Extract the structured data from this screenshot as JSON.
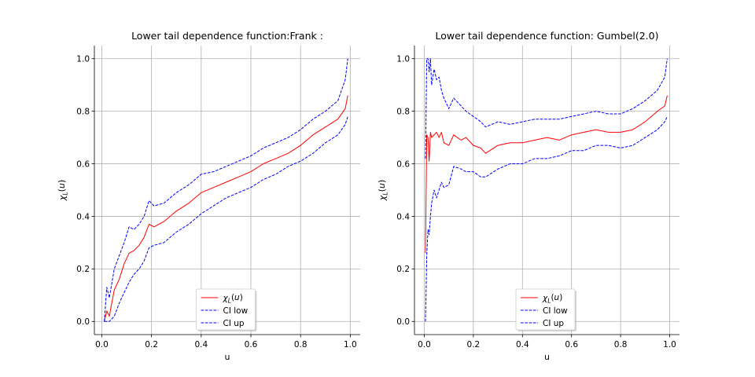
{
  "chart_data": [
    {
      "type": "line",
      "title": "Lower tail dependence function:Frank :",
      "xlabel": "u",
      "ylabel": "χL(u)",
      "xlim": [
        -0.03,
        1.04
      ],
      "ylim": [
        -0.05,
        1.05
      ],
      "xticks": [
        "0.0",
        "0.2",
        "0.4",
        "0.6",
        "0.8",
        "1.0"
      ],
      "yticks": [
        "0.0",
        "0.2",
        "0.4",
        "0.6",
        "0.8",
        "1.0"
      ],
      "grid": true,
      "legend": {
        "placement": "lower center",
        "entries": [
          "χL(u)",
          "CI low",
          "CI up"
        ]
      },
      "series": [
        {
          "name": "χL(u)",
          "color": "#ff0000",
          "dash": "solid",
          "x": [
            0.01,
            0.02,
            0.03,
            0.05,
            0.07,
            0.09,
            0.11,
            0.13,
            0.15,
            0.17,
            0.19,
            0.21,
            0.25,
            0.3,
            0.35,
            0.4,
            0.45,
            0.5,
            0.55,
            0.6,
            0.65,
            0.7,
            0.75,
            0.8,
            0.85,
            0.9,
            0.95,
            0.98,
            0.99
          ],
          "y": [
            0.0,
            0.04,
            0.02,
            0.12,
            0.16,
            0.22,
            0.26,
            0.27,
            0.29,
            0.32,
            0.37,
            0.36,
            0.38,
            0.42,
            0.45,
            0.49,
            0.51,
            0.53,
            0.55,
            0.57,
            0.6,
            0.62,
            0.64,
            0.67,
            0.71,
            0.74,
            0.77,
            0.81,
            0.86
          ]
        },
        {
          "name": "CI low",
          "color": "#0000ff",
          "dash": "dashed",
          "x": [
            0.01,
            0.03,
            0.05,
            0.07,
            0.09,
            0.11,
            0.13,
            0.15,
            0.17,
            0.19,
            0.21,
            0.25,
            0.3,
            0.35,
            0.4,
            0.45,
            0.5,
            0.55,
            0.6,
            0.65,
            0.7,
            0.75,
            0.8,
            0.85,
            0.9,
            0.95,
            0.98,
            0.99
          ],
          "y": [
            0.0,
            0.0,
            0.02,
            0.07,
            0.11,
            0.15,
            0.18,
            0.2,
            0.23,
            0.28,
            0.29,
            0.3,
            0.34,
            0.37,
            0.41,
            0.44,
            0.47,
            0.49,
            0.51,
            0.54,
            0.56,
            0.59,
            0.61,
            0.64,
            0.68,
            0.71,
            0.75,
            0.78
          ]
        },
        {
          "name": "CI up",
          "color": "#0000ff",
          "dash": "dashed",
          "x": [
            0.01,
            0.02,
            0.03,
            0.05,
            0.07,
            0.09,
            0.11,
            0.13,
            0.15,
            0.17,
            0.19,
            0.21,
            0.25,
            0.3,
            0.35,
            0.4,
            0.45,
            0.5,
            0.55,
            0.6,
            0.65,
            0.7,
            0.75,
            0.8,
            0.85,
            0.9,
            0.95,
            0.98,
            0.99
          ],
          "y": [
            0.0,
            0.13,
            0.09,
            0.2,
            0.25,
            0.3,
            0.36,
            0.35,
            0.37,
            0.4,
            0.46,
            0.44,
            0.45,
            0.49,
            0.52,
            0.56,
            0.57,
            0.59,
            0.61,
            0.63,
            0.66,
            0.68,
            0.7,
            0.73,
            0.77,
            0.8,
            0.84,
            0.92,
            1.0
          ]
        }
      ]
    },
    {
      "type": "line",
      "title": "Lower tail dependence function: Gumbel(2.0)",
      "xlabel": "u",
      "ylabel": "χL(u)",
      "xlim": [
        -0.04,
        1.04
      ],
      "ylim": [
        -0.05,
        1.05
      ],
      "xticks": [
        "0.0",
        "0.2",
        "0.4",
        "0.6",
        "0.8",
        "1.0"
      ],
      "yticks": [
        "0.0",
        "0.2",
        "0.4",
        "0.6",
        "0.8",
        "1.0"
      ],
      "grid": true,
      "legend": {
        "placement": "lower center",
        "entries": [
          "χL(u)",
          "CI low",
          "CI up"
        ]
      },
      "series": [
        {
          "name": "χL(u)",
          "color": "#ff0000",
          "dash": "solid",
          "x": [
            0.005,
            0.01,
            0.015,
            0.02,
            0.025,
            0.03,
            0.04,
            0.05,
            0.06,
            0.07,
            0.08,
            0.1,
            0.12,
            0.15,
            0.17,
            0.2,
            0.23,
            0.25,
            0.3,
            0.35,
            0.4,
            0.45,
            0.5,
            0.55,
            0.6,
            0.65,
            0.7,
            0.75,
            0.8,
            0.85,
            0.9,
            0.95,
            0.98,
            0.99
          ],
          "y": [
            0.26,
            0.71,
            0.7,
            0.61,
            0.72,
            0.7,
            0.71,
            0.72,
            0.7,
            0.72,
            0.68,
            0.67,
            0.71,
            0.69,
            0.7,
            0.67,
            0.66,
            0.64,
            0.67,
            0.68,
            0.68,
            0.69,
            0.7,
            0.69,
            0.71,
            0.72,
            0.73,
            0.72,
            0.72,
            0.73,
            0.76,
            0.8,
            0.82,
            0.86
          ]
        },
        {
          "name": "CI low",
          "color": "#0000ff",
          "dash": "dashed",
          "x": [
            0.005,
            0.01,
            0.015,
            0.02,
            0.025,
            0.03,
            0.04,
            0.05,
            0.06,
            0.07,
            0.08,
            0.1,
            0.12,
            0.15,
            0.17,
            0.2,
            0.23,
            0.25,
            0.3,
            0.35,
            0.4,
            0.45,
            0.5,
            0.55,
            0.6,
            0.65,
            0.7,
            0.75,
            0.8,
            0.85,
            0.9,
            0.95,
            0.98,
            0.99
          ],
          "y": [
            0.0,
            0.25,
            0.35,
            0.33,
            0.4,
            0.45,
            0.5,
            0.47,
            0.5,
            0.53,
            0.51,
            0.52,
            0.59,
            0.58,
            0.57,
            0.57,
            0.55,
            0.55,
            0.58,
            0.6,
            0.6,
            0.62,
            0.62,
            0.63,
            0.65,
            0.65,
            0.67,
            0.67,
            0.66,
            0.67,
            0.7,
            0.73,
            0.76,
            0.78
          ]
        },
        {
          "name": "CI up",
          "color": "#0000ff",
          "dash": "dashed",
          "x": [
            0.005,
            0.01,
            0.015,
            0.02,
            0.025,
            0.03,
            0.04,
            0.05,
            0.06,
            0.07,
            0.08,
            0.1,
            0.12,
            0.15,
            0.17,
            0.2,
            0.23,
            0.25,
            0.3,
            0.35,
            0.4,
            0.45,
            0.5,
            0.55,
            0.6,
            0.65,
            0.7,
            0.75,
            0.8,
            0.85,
            0.9,
            0.95,
            0.98,
            0.99
          ],
          "y": [
            0.62,
            1.0,
            1.0,
            0.95,
            1.0,
            0.9,
            0.96,
            0.92,
            0.93,
            0.88,
            0.85,
            0.81,
            0.85,
            0.82,
            0.8,
            0.78,
            0.76,
            0.74,
            0.76,
            0.75,
            0.76,
            0.77,
            0.77,
            0.77,
            0.78,
            0.79,
            0.8,
            0.79,
            0.79,
            0.81,
            0.84,
            0.88,
            0.93,
            1.0
          ]
        }
      ]
    }
  ]
}
